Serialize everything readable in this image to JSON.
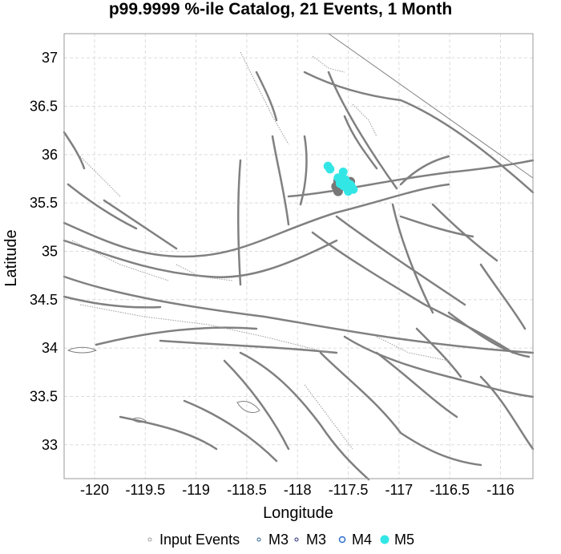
{
  "chart_data": {
    "type": "scatter",
    "title": "p99.9999 %-ile Catalog, 21 Events, 1 Month",
    "xlabel": "Longitude",
    "ylabel": "Latitude",
    "xlim": [
      -120.3,
      -115.68
    ],
    "ylim": [
      32.65,
      37.25
    ],
    "xticks": [
      -120,
      -119.5,
      -119,
      -118.5,
      -118,
      -117.5,
      -117,
      -116.5,
      -116
    ],
    "xtick_labels": [
      "-120",
      "-119.5",
      "-119",
      "-118.5",
      "-118",
      "-117.5",
      "-117",
      "-116.5",
      "-116"
    ],
    "yticks": [
      33,
      33.5,
      34,
      34.5,
      35,
      35.5,
      36,
      36.5,
      37
    ],
    "ytick_labels": [
      "33",
      "33.5",
      "34",
      "34.5",
      "35",
      "35.5",
      "36",
      "36.5",
      "37"
    ],
    "grid": true,
    "legend_position": "bottom",
    "legend": [
      {
        "label": "Input Events",
        "marker": "hollow-small",
        "color": "#9e9e9e"
      },
      {
        "label": "M3",
        "marker": "hollow-small",
        "color": "#2e5f8a"
      },
      {
        "label": "M3",
        "marker": "hollow-small",
        "color": "#2a2a7a"
      },
      {
        "label": "M4",
        "marker": "hollow",
        "color": "#2f6fd0"
      },
      {
        "label": "M5",
        "marker": "filled",
        "color": "#33e6e6"
      }
    ],
    "series": [
      {
        "name": "Input Events",
        "color": "#777777",
        "points": [
          {
            "x": -117.6,
            "y": 35.73
          },
          {
            "x": -117.57,
            "y": 35.76
          },
          {
            "x": -117.55,
            "y": 35.7
          },
          {
            "x": -117.52,
            "y": 35.68
          },
          {
            "x": -117.6,
            "y": 35.62
          },
          {
            "x": -117.48,
            "y": 35.72
          },
          {
            "x": -117.62,
            "y": 35.67
          }
        ]
      },
      {
        "name": "M5",
        "color": "#33e6e6",
        "points": [
          {
            "x": -117.7,
            "y": 35.88
          },
          {
            "x": -117.68,
            "y": 35.85
          },
          {
            "x": -117.55,
            "y": 35.82
          },
          {
            "x": -117.58,
            "y": 35.7
          },
          {
            "x": -117.55,
            "y": 35.68
          },
          {
            "x": -117.52,
            "y": 35.66
          },
          {
            "x": -117.5,
            "y": 35.7
          },
          {
            "x": -117.47,
            "y": 35.67
          },
          {
            "x": -117.45,
            "y": 35.64
          },
          {
            "x": -117.5,
            "y": 35.62
          },
          {
            "x": -117.6,
            "y": 35.76
          },
          {
            "x": -117.56,
            "y": 35.72
          },
          {
            "x": -117.53,
            "y": 35.74
          },
          {
            "x": -117.48,
            "y": 35.69
          }
        ]
      }
    ]
  },
  "colors": {
    "fault": "#808080",
    "grid": "#dcdcdc",
    "m5": "#33e6e6",
    "input": "#777777"
  }
}
